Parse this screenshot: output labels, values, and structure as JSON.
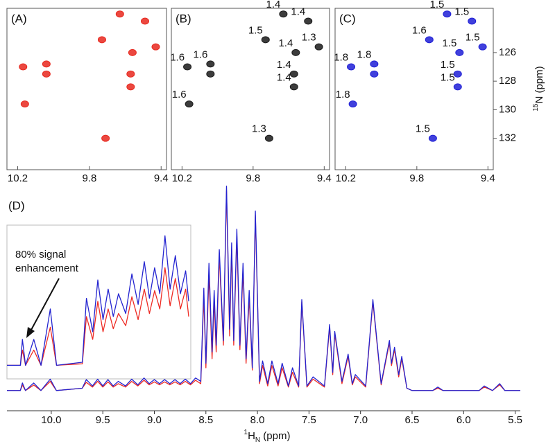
{
  "chart_data": [
    {
      "type": "scatter",
      "title": "(A)",
      "color": "#e8281e",
      "x": [
        9.63,
        9.49,
        9.73,
        9.56,
        9.43,
        10.17,
        10.04,
        10.04,
        9.57,
        9.57,
        10.16,
        9.71
      ],
      "y": [
        123.3,
        123.8,
        125.1,
        126.0,
        125.6,
        127.0,
        126.8,
        127.5,
        127.5,
        128.4,
        129.6,
        132.0
      ],
      "xlim": [
        10.26,
        9.37
      ],
      "ylim": [
        134.2,
        122.9
      ],
      "xticks": [
        10.2,
        9.8,
        9.4
      ]
    },
    {
      "type": "scatter",
      "title": "(B)",
      "color": "#1a1a1a",
      "x": [
        9.63,
        9.49,
        9.73,
        9.56,
        9.43,
        10.17,
        10.04,
        10.04,
        9.57,
        9.57,
        10.16,
        9.71
      ],
      "y": [
        123.3,
        123.8,
        125.1,
        126.0,
        125.6,
        127.0,
        126.8,
        127.5,
        127.5,
        128.4,
        129.6,
        132.0
      ],
      "point_labels": [
        "1.4",
        "1.4",
        "1.5",
        "1.4",
        "1.3",
        "1.6",
        "1.6",
        null,
        "1.4",
        "1.4",
        "1.6",
        "1.3"
      ],
      "xlim": [
        10.26,
        9.37
      ],
      "ylim": [
        134.2,
        122.9
      ],
      "xticks": [
        10.2,
        9.8,
        9.4
      ]
    },
    {
      "type": "scatter",
      "title": "(C)",
      "color": "#1f1fd6",
      "x": [
        9.63,
        9.49,
        9.73,
        9.56,
        9.43,
        10.17,
        10.04,
        10.04,
        9.57,
        9.57,
        10.16,
        9.71
      ],
      "y": [
        123.3,
        123.8,
        125.1,
        126.0,
        125.6,
        127.0,
        126.8,
        127.5,
        127.5,
        128.4,
        129.6,
        132.0
      ],
      "point_labels": [
        "1.5",
        "1.5",
        "1.6",
        "1.5",
        "1.5",
        "1.8",
        "1.8",
        null,
        "1.5",
        "1.5",
        "1.8",
        "1.5"
      ],
      "xlim": [
        10.26,
        9.37
      ],
      "ylim": [
        134.2,
        122.9
      ],
      "xticks": [
        10.2,
        9.8,
        9.4
      ],
      "yticks": [
        126,
        128,
        130,
        132
      ],
      "ylabel": {
        "sup": "15",
        "text": "N (ppm)"
      }
    },
    {
      "type": "line",
      "title": "(D)",
      "annotation": [
        "80% signal",
        "enhancement"
      ],
      "xlabel": {
        "sup": "1",
        "text": "H",
        "sub": "N",
        "unit": " (ppm)"
      },
      "xlim": [
        10.43,
        5.45
      ],
      "ylim": [
        0,
        100
      ],
      "xticks": [
        {
          "value": 10,
          "label": "10.0"
        },
        9.5,
        {
          "value": 9,
          "label": "9.0"
        },
        8.5,
        {
          "value": 8,
          "label": "8.0"
        },
        7.5,
        {
          "value": 7,
          "label": "7.0"
        },
        6.5,
        {
          "value": 6,
          "label": "6.0"
        },
        5.5
      ],
      "x": [
        10.43,
        10.3,
        10.28,
        10.25,
        10.17,
        10.1,
        10.01,
        9.95,
        9.7,
        9.66,
        9.6,
        9.55,
        9.5,
        9.45,
        9.4,
        9.35,
        9.28,
        9.22,
        9.16,
        9.1,
        9.05,
        9.0,
        8.95,
        8.9,
        8.85,
        8.8,
        8.75,
        8.7,
        8.65,
        8.6,
        8.55,
        8.52,
        8.5,
        8.47,
        8.44,
        8.42,
        8.4,
        8.37,
        8.33,
        8.3,
        8.27,
        8.25,
        8.23,
        8.2,
        8.17,
        8.14,
        8.11,
        8.08,
        8.05,
        8.02,
        7.98,
        7.95,
        7.9,
        7.86,
        7.8,
        7.76,
        7.7,
        7.66,
        7.6,
        7.57,
        7.52,
        7.46,
        7.35,
        7.3,
        7.27,
        7.25,
        7.18,
        7.12,
        7.08,
        7.05,
        6.95,
        6.88,
        6.8,
        6.72,
        6.7,
        6.67,
        6.63,
        6.6,
        6.55,
        6.5,
        6.3,
        6.25,
        6.2,
        5.85,
        5.8,
        5.72,
        5.65,
        5.6,
        5.45
      ],
      "series": [
        {
          "color": "#ee2b24",
          "values": [
            8,
            8,
            10.4,
            8,
            10.4,
            8,
            12,
            8,
            9,
            11.6,
            9.5,
            12,
            9.5,
            11.8,
            9.5,
            11,
            9.5,
            12,
            10,
            12.5,
            10.5,
            11.8,
            10.5,
            11.8,
            10.5,
            11.8,
            10.5,
            12,
            10.5,
            12.5,
            11,
            49,
            18,
            59,
            22,
            48,
            25,
            67,
            28,
            96,
            32,
            70,
            28,
            76,
            26,
            61,
            20,
            49,
            17,
            85,
            11,
            19,
            10,
            19,
            10,
            18,
            9.5,
            16,
            9.5,
            47,
            9.5,
            13,
            9.5,
            36,
            15,
            33,
            11,
            23,
            10.5,
            14,
            9.5,
            47,
            10.5,
            29,
            19,
            26,
            14,
            22,
            9,
            8,
            8,
            9,
            8,
            8,
            9.5,
            8,
            10.5,
            8,
            8
          ]
        },
        {
          "color": "#2424d0",
          "values": [
            8,
            8,
            11.3,
            8,
            11.3,
            8,
            13,
            8,
            9,
            12.8,
            10,
            13,
            10,
            12.8,
            10,
            12,
            10,
            13,
            10.5,
            13.5,
            11,
            12.8,
            11,
            12.8,
            11,
            12.8,
            11,
            13,
            11,
            13.5,
            12,
            53,
            20,
            64,
            25,
            52,
            28,
            70,
            30,
            98,
            35,
            73,
            30,
            79,
            28,
            64,
            22,
            52,
            18,
            87,
            12,
            21,
            11,
            21,
            11,
            20,
            10,
            18,
            10,
            48,
            10,
            14,
            10,
            37,
            16,
            34,
            12,
            24,
            11,
            15,
            10,
            48,
            11,
            30,
            20,
            27,
            15,
            23,
            9,
            8,
            8,
            9.5,
            8,
            8,
            10,
            8,
            11,
            8,
            8
          ]
        }
      ]
    },
    {
      "type": "line",
      "xlim": [
        10.43,
        8.65
      ],
      "ylim": [
        0,
        100
      ],
      "x": [
        10.43,
        10.3,
        10.28,
        10.25,
        10.17,
        10.1,
        10.01,
        9.95,
        9.7,
        9.66,
        9.6,
        9.55,
        9.5,
        9.45,
        9.4,
        9.35,
        9.28,
        9.22,
        9.16,
        9.1,
        9.05,
        9.0,
        8.95,
        8.9,
        8.85,
        8.8,
        8.75,
        8.7,
        8.67
      ],
      "series": [
        {
          "color": "#ee2b24",
          "values": [
            8,
            8,
            18,
            8,
            18,
            8,
            33,
            8,
            9,
            40,
            25,
            50,
            30,
            45,
            32,
            42,
            34,
            53,
            38,
            58,
            42,
            57,
            45,
            72,
            47,
            65,
            45,
            58,
            40
          ]
        },
        {
          "color": "#2424d0",
          "values": [
            8,
            8,
            25,
            8,
            25,
            8,
            45,
            8,
            10,
            52,
            30,
            64,
            38,
            58,
            40,
            55,
            42,
            68,
            48,
            76,
            52,
            72,
            55,
            93,
            58,
            80,
            55,
            70,
            50
          ]
        }
      ]
    }
  ]
}
